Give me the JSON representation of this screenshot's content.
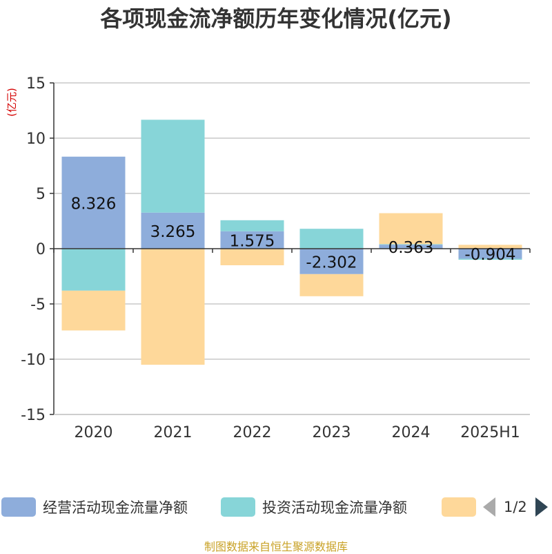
{
  "title": "各项现金流净额历年变化情况(亿元)",
  "source_note": "制图数据来自恒生聚源数据库",
  "legend": {
    "items": [
      {
        "name": "经营活动现金流量净额",
        "color": "#8eaddb"
      },
      {
        "name": "投资活动现金流量净额",
        "color": "#87d5d8"
      },
      {
        "name": "",
        "color": "#fed89a"
      }
    ],
    "page_text": "1/2"
  },
  "chart_data": {
    "type": "bar",
    "stacked": true,
    "ylabel": "(亿元)",
    "ylim": [
      -15,
      15
    ],
    "yticks": [
      15,
      10,
      5,
      0,
      -5,
      -10,
      -15
    ],
    "ytick_labels": [
      "15",
      "10",
      "5",
      "0",
      "-5",
      "-10",
      "-15"
    ],
    "categories": [
      "2020",
      "2021",
      "2022",
      "2023",
      "2024",
      "2025H1"
    ],
    "grid": true,
    "legend_position": "bottom",
    "series": [
      {
        "name": "经营活动现金流量净额",
        "color": "#8eaddb",
        "values": [
          8.326,
          3.265,
          1.575,
          -2.302,
          0.363,
          -0.904
        ],
        "labels": [
          "8.326",
          "3.265",
          "1.575",
          "-2.302",
          "0.363",
          "-0.904"
        ]
      },
      {
        "name": "投资活动现金流量净额",
        "color": "#87d5d8",
        "values": [
          -3.8,
          8.4,
          1.0,
          1.8,
          0.05,
          -0.1
        ]
      },
      {
        "color": "#fed89a",
        "values": [
          -3.6,
          -10.5,
          -1.5,
          -2.0,
          2.8,
          0.35
        ]
      }
    ]
  }
}
